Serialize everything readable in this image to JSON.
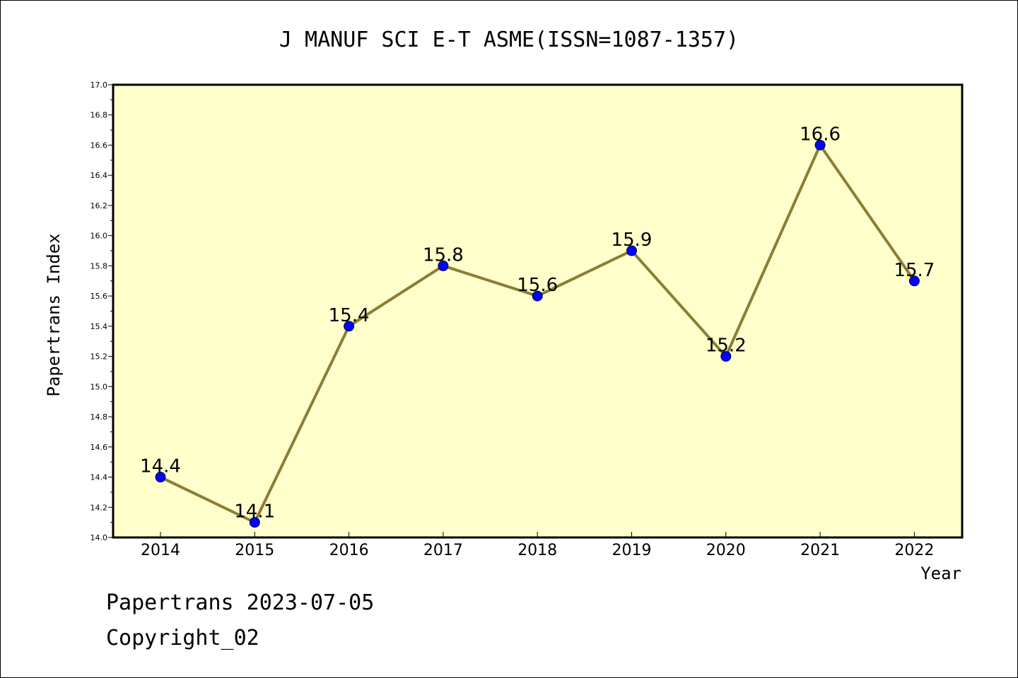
{
  "chart_data": {
    "type": "line",
    "title": "J MANUF SCI E-T ASME(ISSN=1087-1357)",
    "xlabel": "Year",
    "ylabel": "Papertrans Index",
    "categories": [
      "2014",
      "2015",
      "2016",
      "2017",
      "2018",
      "2019",
      "2020",
      "2021",
      "2022"
    ],
    "values": [
      14.4,
      14.1,
      15.4,
      15.8,
      15.6,
      15.9,
      15.2,
      16.6,
      15.7
    ],
    "data_labels": [
      "14.4",
      "14.1",
      "15.4",
      "15.8",
      "15.6",
      "15.9",
      "15.2",
      "16.6",
      "15.7"
    ],
    "ylim": [
      14.0,
      17.0
    ],
    "yticks": [
      "14.0",
      "14.2",
      "14.4",
      "14.6",
      "14.8",
      "15.0",
      "15.2",
      "15.4",
      "15.6",
      "15.8",
      "16.0",
      "16.2",
      "16.4",
      "16.6",
      "16.8",
      "17.0"
    ],
    "grid": false,
    "colors": {
      "plot_background": "#ffffcc",
      "line": "#8b7d35",
      "marker": "#0000ff",
      "axis": "#000000"
    }
  },
  "footer": {
    "date_text": "Papertrans 2023-07-05",
    "copyright_text": "Copyright_02"
  }
}
